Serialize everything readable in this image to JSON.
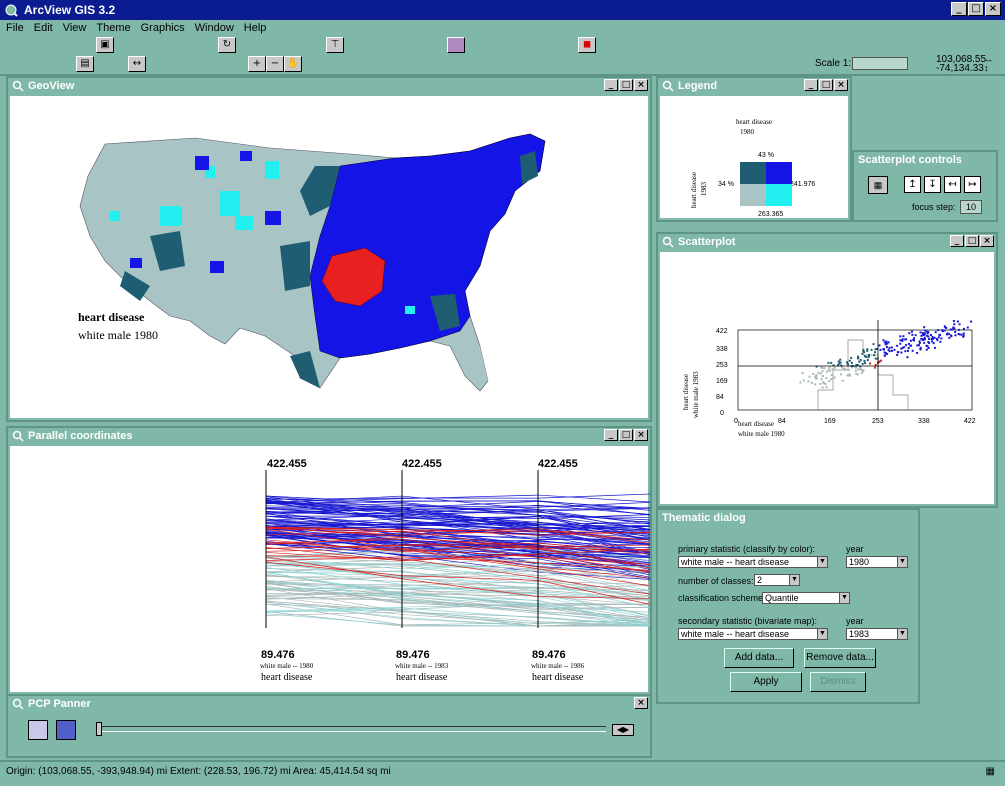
{
  "app": {
    "title": "ArcView GIS 3.2"
  },
  "menu": [
    "File",
    "Edit",
    "View",
    "Theme",
    "Graphics",
    "Window",
    "Help"
  ],
  "toolbar": {
    "scale_label": "Scale 1:",
    "scale_value": "",
    "coord_x": "103,068.55",
    "coord_y": "-74,134.33"
  },
  "geoview": {
    "title": "GeoView",
    "label_main": "heart disease",
    "label_sub": "white male 1980"
  },
  "legend": {
    "title": "Legend",
    "heading1": "heart disease",
    "heading2": "1980",
    "top_pct": "43 %",
    "left_pct": "34 %",
    "right_val": "241.976",
    "bottom_val": "263.365",
    "yaxis1": "heart disease",
    "yaxis2": "1983",
    "colors": {
      "top_left": "#1f5d72",
      "top_right": "#1414e6",
      "bottom_left": "#a8c4c4",
      "bottom_right": "#22f0f0"
    }
  },
  "scatter_controls": {
    "title": "Scatterplot controls",
    "focus_label": "focus step:",
    "focus_value": "10"
  },
  "scatterplot": {
    "title": "Scatterplot",
    "xlabel1": "heart disease",
    "xlabel2": "white male 1980",
    "ylabel1": "heart disease",
    "ylabel2": "white male 1983",
    "yticks": [
      "422",
      "338",
      "253",
      "169",
      "84",
      "0"
    ],
    "xticks": [
      "0",
      "84",
      "169",
      "253",
      "338",
      "422"
    ]
  },
  "parallel": {
    "title": "Parallel coordinates",
    "axes": [
      {
        "max": "422.455",
        "min": "89.476",
        "sub": "white male -- 1980",
        "name": "heart disease"
      },
      {
        "max": "422.455",
        "min": "89.476",
        "sub": "white male -- 1983",
        "name": "heart disease"
      },
      {
        "max": "422.455",
        "min": "89.476",
        "sub": "white male -- 1986",
        "name": "heart disease"
      }
    ]
  },
  "thematic": {
    "title": "Thematic dialog",
    "primary_label": "primary statistic (classify by color):",
    "primary_value": "white male -- heart disease",
    "year_label": "year",
    "year1_value": "1980",
    "classes_label": "number of classes:",
    "classes_value": "2",
    "scheme_label": "classification scheme:",
    "scheme_value": "Quantile",
    "secondary_label": "secondary statistic (bivariate map):",
    "secondary_value": "white male -- heart disease",
    "year2_label": "year",
    "year2_value": "1983",
    "add_label": "Add data...",
    "remove_label": "Remove data...",
    "apply_label": "Apply",
    "dismiss_label": "Dismiss"
  },
  "pcp_panner": {
    "title": "PCP Panner"
  },
  "status": {
    "text": "Origin: (103,068.55, -393,948.94) mi   Extent: (228.53, 196.72) mi   Area: 45,414.54 sq mi"
  }
}
